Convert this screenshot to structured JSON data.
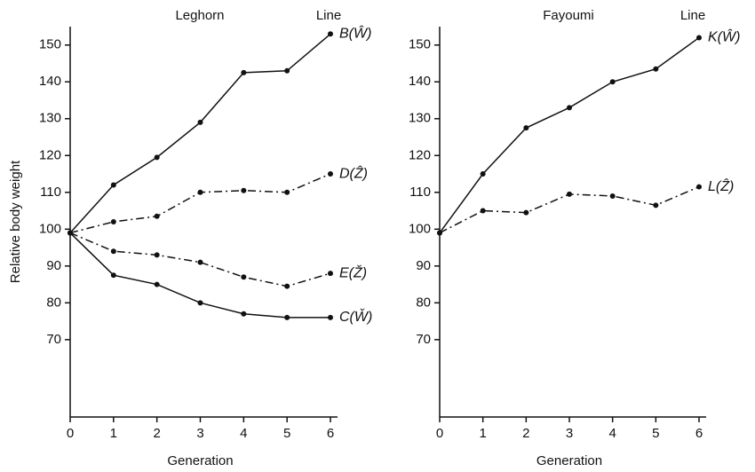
{
  "chart_data": [
    {
      "type": "line",
      "title": "Leghorn",
      "legend_title": "Line",
      "ylabel": "Relative body weight",
      "xlabel": "Generation",
      "x": [
        0,
        1,
        2,
        3,
        4,
        5,
        6
      ],
      "xlim": [
        0,
        6
      ],
      "xticks": [
        0,
        1,
        2,
        3,
        4,
        5,
        6
      ],
      "ylim": [
        49,
        155
      ],
      "yticks": [
        70,
        80,
        90,
        100,
        110,
        120,
        130,
        140,
        150
      ],
      "series": [
        {
          "name": "B(Ŵ)",
          "color": "#111111",
          "dashed": false,
          "values": [
            99,
            112,
            119.5,
            129,
            142.5,
            143,
            153
          ]
        },
        {
          "name": "D(Ẑ)",
          "color": "#111111",
          "dashed": true,
          "values": [
            99,
            102,
            103.5,
            110,
            110.5,
            110,
            115
          ]
        },
        {
          "name": "E(Ž)",
          "color": "#111111",
          "dashed": true,
          "values": [
            99,
            94,
            93,
            91,
            87,
            84.5,
            88
          ]
        },
        {
          "name": "C(W̌)",
          "color": "#111111",
          "dashed": false,
          "values": [
            99,
            87.5,
            85,
            80,
            77,
            76,
            76
          ]
        }
      ]
    },
    {
      "type": "line",
      "title": "Fayoumi",
      "legend_title": "Line",
      "xlabel": "Generation",
      "x": [
        0,
        1,
        2,
        3,
        4,
        5,
        6
      ],
      "xlim": [
        0,
        6
      ],
      "xticks": [
        0,
        1,
        2,
        3,
        4,
        5,
        6
      ],
      "ylim": [
        49,
        155
      ],
      "yticks": [
        70,
        80,
        90,
        100,
        110,
        120,
        130,
        140,
        150
      ],
      "series": [
        {
          "name": "K(Ŵ)",
          "color": "#111111",
          "dashed": false,
          "values": [
            99,
            115,
            127.5,
            133,
            140,
            143.5,
            152
          ]
        },
        {
          "name": "L(Ẑ)",
          "color": "#111111",
          "dashed": true,
          "values": [
            99,
            105,
            104.5,
            109.5,
            109,
            106.5,
            111.5
          ]
        }
      ]
    }
  ]
}
